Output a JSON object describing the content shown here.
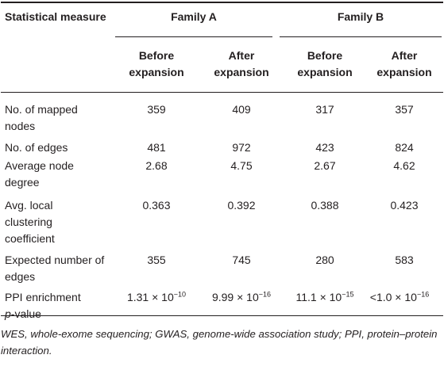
{
  "header": {
    "measure_col": "Statistical measure",
    "family_a": "Family A",
    "family_b": "Family B",
    "before": "Before expansion",
    "after": "After expansion"
  },
  "rows": [
    {
      "label": "No. of mapped nodes",
      "a_before": "359",
      "a_after": "409",
      "b_before": "317",
      "b_after": "357"
    },
    {
      "label": "No. of edges",
      "a_before": "481",
      "a_after": "972",
      "b_before": "423",
      "b_after": "824"
    },
    {
      "label": "Average node degree",
      "a_before": "2.68",
      "a_after": "4.75",
      "b_before": "2.67",
      "b_after": "4.62"
    },
    {
      "label": "Avg. local clustering coefficient",
      "a_before": "0.363",
      "a_after": "0.392",
      "b_before": "0.388",
      "b_after": "0.423"
    },
    {
      "label": "Expected number of edges",
      "a_before": "355",
      "a_after": "745",
      "b_before": "280",
      "b_after": "583"
    }
  ],
  "ppi_row": {
    "label_main": "PPI enrichment",
    "label_p": "p",
    "label_suffix": "-value",
    "a_before": {
      "base": "1.31 × 10",
      "exp": "−10"
    },
    "a_after": {
      "base": "9.99 × 10",
      "exp": "−16"
    },
    "b_before": {
      "base": "11.1 × 10",
      "exp": "−15"
    },
    "b_after": {
      "base": "<1.0 × 10",
      "exp": "−16"
    }
  },
  "footnote": "WES, whole-exome sequencing; GWAS, genome-wide association study; PPI, protein–protein interaction."
}
